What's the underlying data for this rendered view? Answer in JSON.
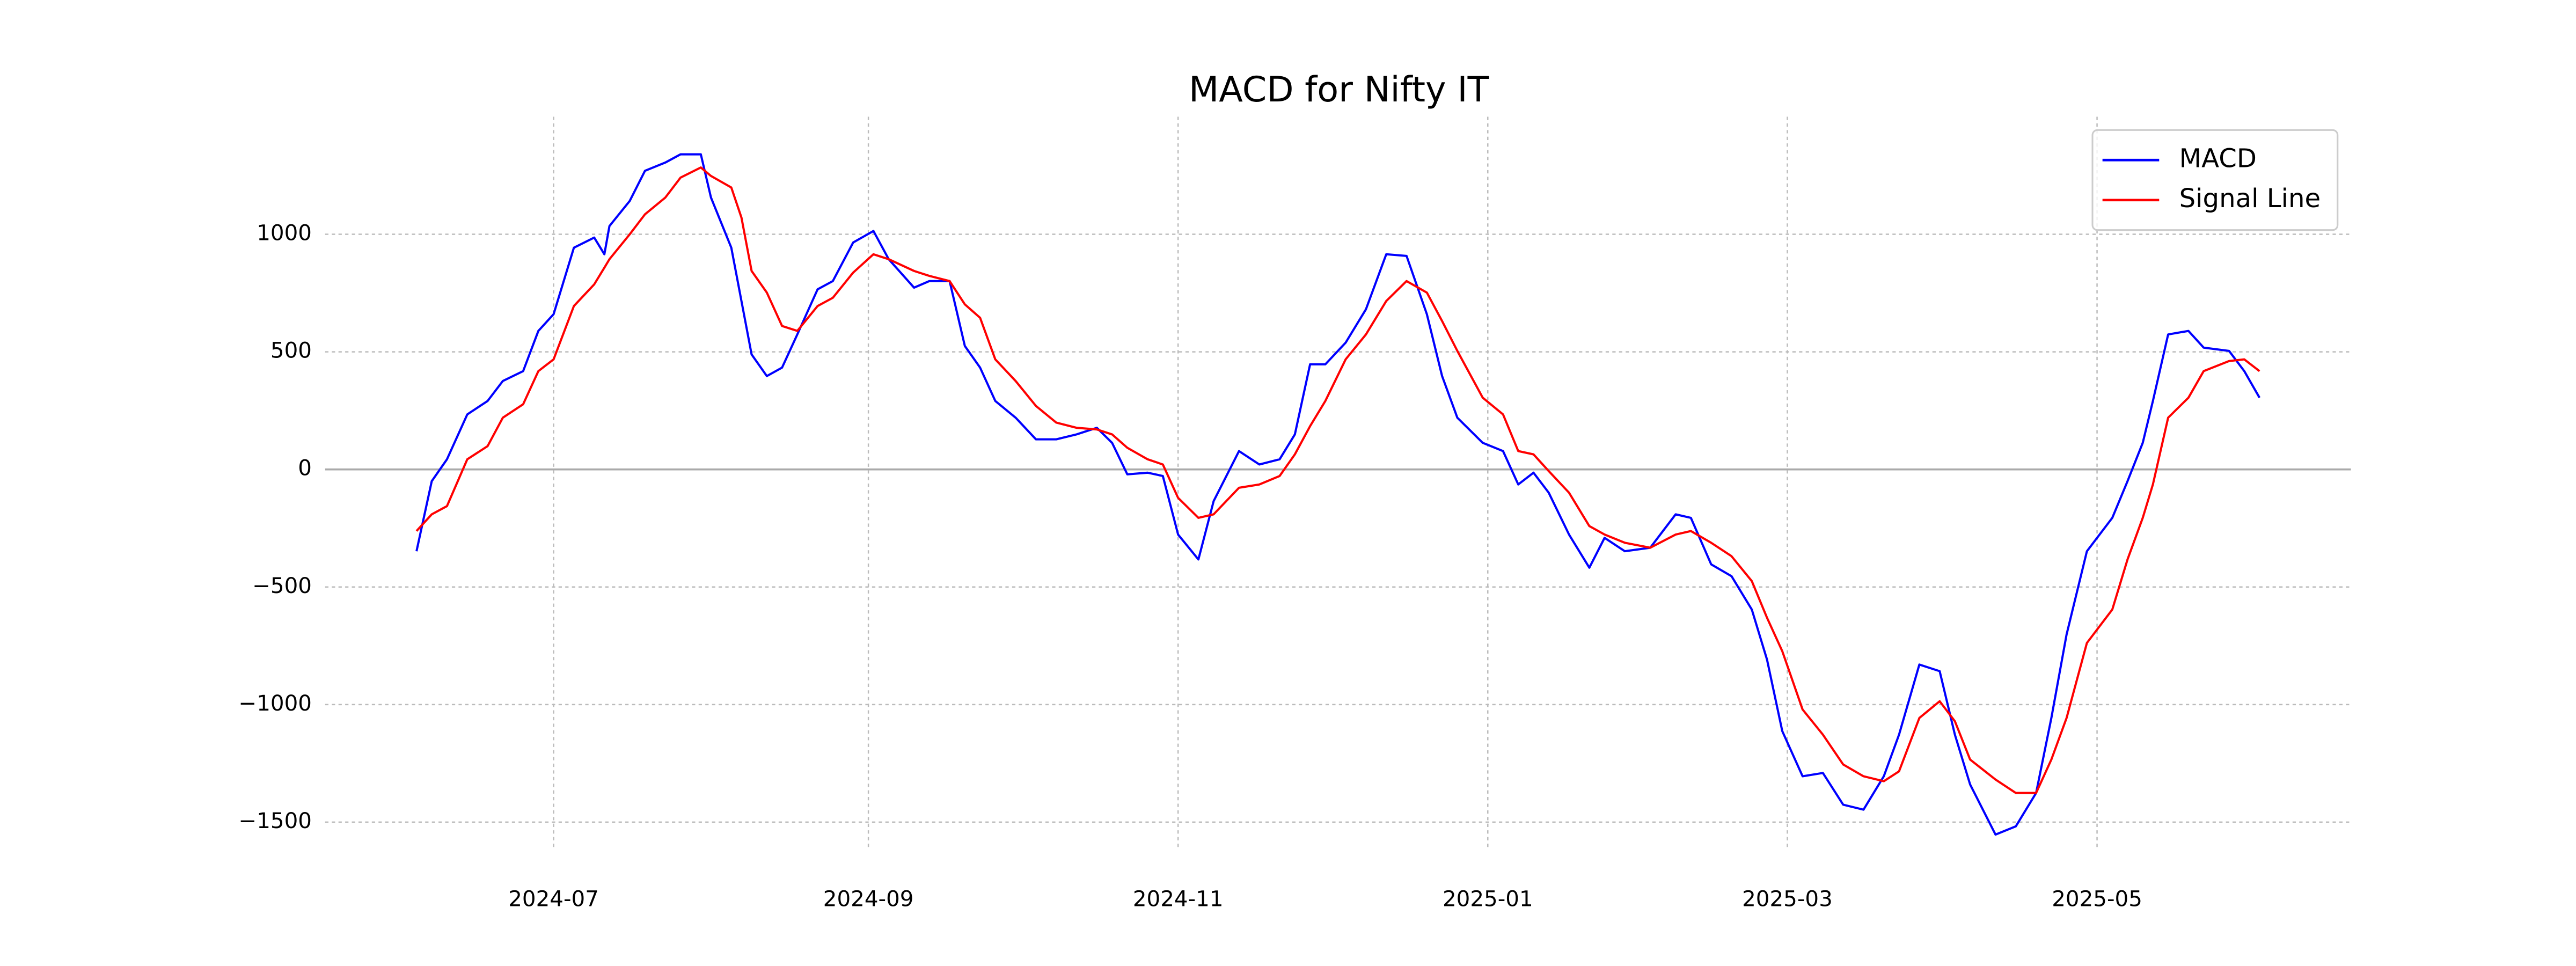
{
  "chart_data": {
    "type": "line",
    "title": "MACD for Nifty IT",
    "x": [
      "2024-06-04",
      "2024-06-07",
      "2024-06-10",
      "2024-06-14",
      "2024-06-18",
      "2024-06-21",
      "2024-06-25",
      "2024-06-28",
      "2024-07-01",
      "2024-07-05",
      "2024-07-09",
      "2024-07-11",
      "2024-07-12",
      "2024-07-16",
      "2024-07-19",
      "2024-07-23",
      "2024-07-26",
      "2024-07-30",
      "2024-08-01",
      "2024-08-05",
      "2024-08-07",
      "2024-08-09",
      "2024-08-12",
      "2024-08-15",
      "2024-08-18",
      "2024-08-22",
      "2024-08-25",
      "2024-08-29",
      "2024-09-02",
      "2024-09-05",
      "2024-09-10",
      "2024-09-13",
      "2024-09-17",
      "2024-09-20",
      "2024-09-23",
      "2024-09-26",
      "2024-09-30",
      "2024-10-04",
      "2024-10-08",
      "2024-10-12",
      "2024-10-16",
      "2024-10-19",
      "2024-10-22",
      "2024-10-26",
      "2024-10-29",
      "2024-11-01",
      "2024-11-05",
      "2024-11-08",
      "2024-11-13",
      "2024-11-17",
      "2024-11-21",
      "2024-11-24",
      "2024-11-27",
      "2024-11-30",
      "2024-12-04",
      "2024-12-08",
      "2024-12-12",
      "2024-12-16",
      "2024-12-20",
      "2024-12-23",
      "2024-12-26",
      "2024-12-31",
      "2025-01-04",
      "2025-01-07",
      "2025-01-10",
      "2025-01-13",
      "2025-01-17",
      "2025-01-21",
      "2025-01-24",
      "2025-01-28",
      "2025-02-02",
      "2025-02-07",
      "2025-02-10",
      "2025-02-14",
      "2025-02-18",
      "2025-02-22",
      "2025-02-25",
      "2025-02-28",
      "2025-03-04",
      "2025-03-08",
      "2025-03-12",
      "2025-03-16",
      "2025-03-20",
      "2025-03-23",
      "2025-03-27",
      "2025-03-31",
      "2025-04-03",
      "2025-04-06",
      "2025-04-11",
      "2025-04-15",
      "2025-04-19",
      "2025-04-22",
      "2025-04-25",
      "2025-04-29",
      "2025-05-04",
      "2025-05-07",
      "2025-05-10",
      "2025-05-12",
      "2025-05-15",
      "2025-05-19",
      "2025-05-22",
      "2025-05-27",
      "2025-05-30",
      "2025-06-02"
    ],
    "series": [
      {
        "name": "MACD",
        "color": "#0000ff",
        "values": [
          -348,
          -50,
          43,
          234,
          291,
          376,
          418,
          589,
          660,
          943,
          986,
          915,
          1035,
          1142,
          1270,
          1305,
          1340,
          1340,
          1156,
          943,
          716,
          489,
          397,
          433,
          574,
          766,
          801,
          965,
          1014,
          894,
          773,
          801,
          801,
          525,
          433,
          291,
          220,
          128,
          128,
          149,
          177,
          113,
          -21,
          -14,
          -28,
          -277,
          -383,
          -135,
          78,
          21,
          43,
          149,
          447,
          447,
          539,
          681,
          915,
          908,
          660,
          397,
          220,
          113,
          78,
          -64,
          -14,
          -99,
          -277,
          -418,
          -291,
          -348,
          -333,
          -191,
          -206,
          -404,
          -454,
          -596,
          -809,
          -1113,
          -1305,
          -1291,
          -1426,
          -1447,
          -1305,
          -1128,
          -830,
          -858,
          -1128,
          -1340,
          -1553,
          -1518,
          -1376,
          -1057,
          -702,
          -348,
          -206,
          -50,
          113,
          291,
          574,
          589,
          518,
          504,
          418,
          305
        ]
      },
      {
        "name": "Signal Line",
        "color": "#ff0000",
        "values": [
          -262,
          -191,
          -156,
          43,
          99,
          220,
          277,
          418,
          468,
          695,
          787,
          858,
          894,
          1000,
          1085,
          1156,
          1241,
          1284,
          1248,
          1199,
          1071,
          844,
          752,
          610,
          589,
          695,
          730,
          837,
          915,
          894,
          844,
          823,
          801,
          702,
          645,
          468,
          376,
          270,
          199,
          177,
          170,
          149,
          92,
          43,
          21,
          -121,
          -206,
          -191,
          -78,
          -64,
          -28,
          64,
          184,
          291,
          468,
          574,
          716,
          801,
          752,
          631,
          504,
          305,
          234,
          78,
          64,
          -7,
          -99,
          -241,
          -277,
          -312,
          -333,
          -277,
          -262,
          -312,
          -369,
          -475,
          -631,
          -773,
          -1021,
          -1128,
          -1255,
          -1305,
          -1326,
          -1284,
          -1057,
          -986,
          -1071,
          -1234,
          -1319,
          -1376,
          -1376,
          -1234,
          -1057,
          -738,
          -596,
          -383,
          -206,
          -64,
          220,
          305,
          418,
          461,
          468,
          418
        ]
      }
    ],
    "xlim": [
      "2024-05-17",
      "2025-06-20"
    ],
    "xticks": [
      {
        "value": "2024-07-01",
        "label": "2024-07"
      },
      {
        "value": "2024-09-01",
        "label": "2024-09"
      },
      {
        "value": "2024-11-01",
        "label": "2024-11"
      },
      {
        "value": "2025-01-01",
        "label": "2025-01"
      },
      {
        "value": "2025-03-01",
        "label": "2025-03"
      },
      {
        "value": "2025-05-01",
        "label": "2025-05"
      }
    ],
    "ylim": [
      -1620,
      1500
    ],
    "yticks": [
      {
        "value": -1500,
        "label": "−1500"
      },
      {
        "value": -1000,
        "label": "−1000"
      },
      {
        "value": -500,
        "label": "−500"
      },
      0,
      500,
      1000
    ],
    "grid": true,
    "legend": "upper right"
  }
}
